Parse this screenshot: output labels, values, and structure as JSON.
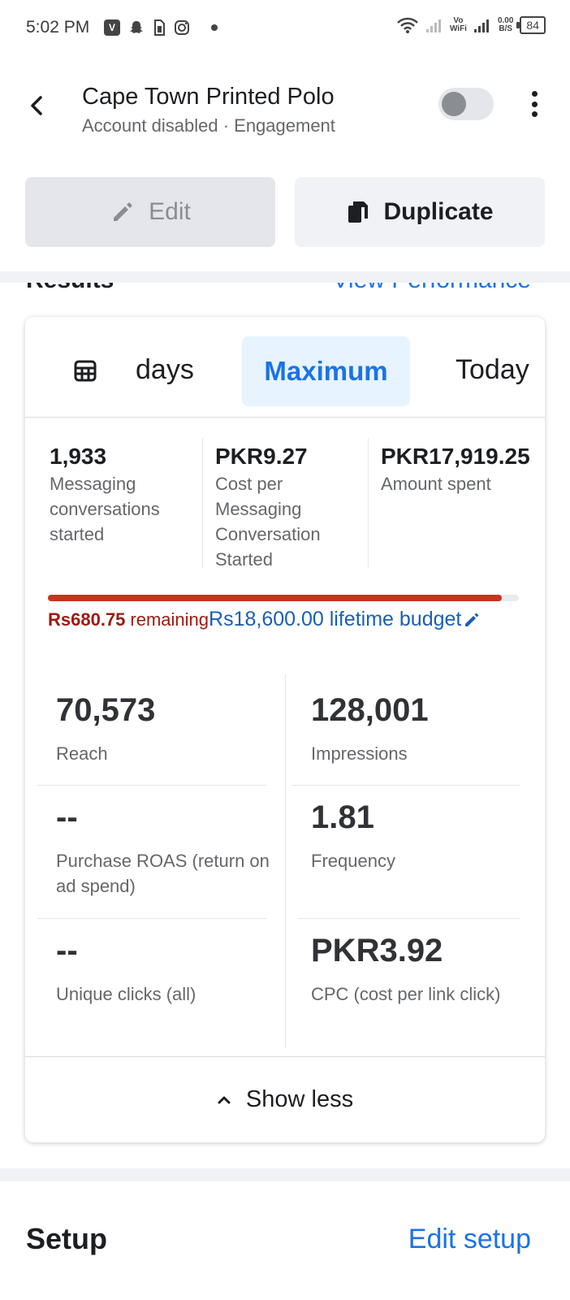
{
  "status_bar": {
    "time": "5:02 PM",
    "left_icons": [
      "v-app-icon",
      "snapchat-icon",
      "sim-icon",
      "instagram-icon",
      "dot-icon"
    ],
    "network_label_top": "Vo",
    "network_label_bottom": "WiFi",
    "speed_top": "0.00",
    "speed_bottom": "B/S",
    "battery": "84"
  },
  "header": {
    "title": "Cape Town Printed Polo",
    "status": "Account disabled",
    "separator": "·",
    "objective": "Engagement",
    "toggle_on": false
  },
  "actions": {
    "edit_label": "Edit",
    "duplicate_label": "Duplicate"
  },
  "section_header": {
    "title": "Results",
    "link": "View Performance"
  },
  "date_tabs": {
    "days_label": "days",
    "maximum_label": "Maximum",
    "today_label": "Today",
    "selected": "Maximum"
  },
  "summary": [
    {
      "value": "1,933",
      "label": "Messaging conversations started"
    },
    {
      "value": "PKR9.27",
      "label": "Cost per Messaging Conversation Started"
    },
    {
      "value": "PKR17,919.25",
      "label": "Amount spent"
    }
  ],
  "budget": {
    "spent_fraction": 0.963,
    "remaining_value": "Rs680.75",
    "remaining_label": "remaining",
    "lifetime_text": "Rs18,600.00 lifetime budget",
    "colors": {
      "bar": "#c8321e",
      "remaining": "#9c1b0e",
      "lifetime": "#1a5fb4"
    }
  },
  "metrics": [
    {
      "value": "70,573",
      "label": "Reach"
    },
    {
      "value": "128,001",
      "label": "Impressions"
    },
    {
      "value": "--",
      "label": "Purchase ROAS (return on ad spend)"
    },
    {
      "value": "1.81",
      "label": "Frequency"
    },
    {
      "value": "--",
      "label": "Unique clicks (all)"
    },
    {
      "value": "PKR3.92",
      "label": "CPC (cost per link click)"
    }
  ],
  "show_less_label": "Show less",
  "setup": {
    "title": "Setup",
    "edit_link": "Edit setup"
  },
  "colors": {
    "accent": "#1a73e8",
    "text_primary": "#1c1e21",
    "text_secondary": "#65676b"
  }
}
